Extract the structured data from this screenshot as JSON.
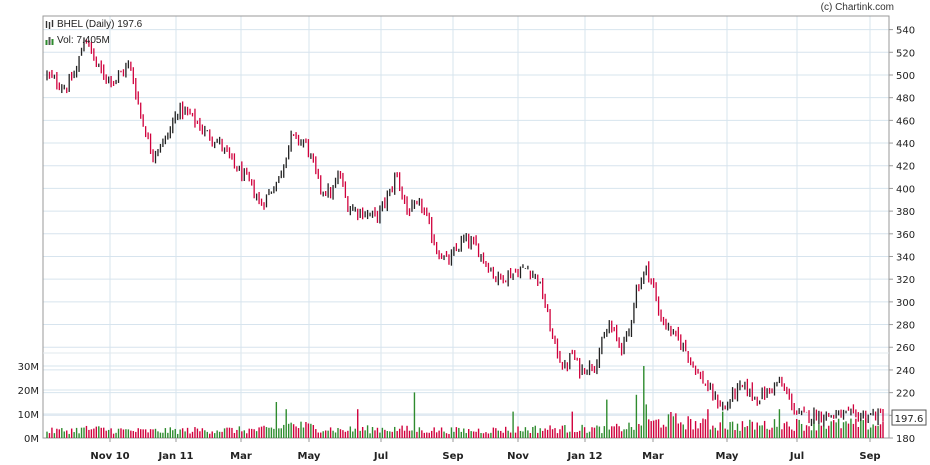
{
  "credit": "(c) Chartink.com",
  "legend": {
    "price_label": "BHEL (Daily) 197.6",
    "volume_label": "Vol: 7.405M"
  },
  "chart_data": {
    "type": "line",
    "title": "BHEL (Daily) 197.6",
    "last_price": 197.6,
    "last_price_label": "197.6",
    "price_axis": {
      "min": 180,
      "max": 552,
      "ticks": [
        180,
        200,
        220,
        240,
        260,
        280,
        300,
        320,
        340,
        360,
        380,
        400,
        420,
        440,
        460,
        480,
        500,
        520,
        540
      ]
    },
    "volume_axis": {
      "max_millions": 30,
      "ticks": [
        "0M",
        "10M",
        "20M",
        "30M"
      ],
      "tick_values": [
        0,
        10,
        20,
        30
      ]
    },
    "x_tick_labels": [
      "Nov 10",
      "Jan 11",
      "Mar",
      "May",
      "Jul",
      "Sep",
      "Nov",
      "Jan 12",
      "Mar",
      "May",
      "Jul",
      "Sep"
    ],
    "x_tick_positions": [
      0.0866,
      0.1868,
      0.2762,
      0.3685,
      0.4584,
      0.5523,
      0.6457,
      0.7348,
      0.8214,
      0.9119,
      1.0,
      1.0925
    ],
    "grid": true,
    "colors": {
      "up": "#2e8b2e",
      "down": "#d0003c",
      "grid": "#d7e4ee",
      "axis": "#999999"
    },
    "price_anchors": {
      "t": [
        0,
        0.01,
        0.025,
        0.04,
        0.05,
        0.065,
        0.075,
        0.09,
        0.11,
        0.125,
        0.14,
        0.16,
        0.175,
        0.19,
        0.21,
        0.23,
        0.25,
        0.27,
        0.285,
        0.295,
        0.31,
        0.325,
        0.345,
        0.365,
        0.38,
        0.39,
        0.4,
        0.415,
        0.44,
        0.46,
        0.465,
        0.48,
        0.5,
        0.52,
        0.535,
        0.555,
        0.57,
        0.585,
        0.6,
        0.62,
        0.64,
        0.655,
        0.665,
        0.675,
        0.69,
        0.7,
        0.71,
        0.73,
        0.75,
        0.765,
        0.775,
        0.785,
        0.8,
        0.81,
        0.815,
        0.83,
        0.85,
        0.865,
        0.89,
        0.905,
        0.915,
        0.93,
        0.945,
        0.96,
        0.975,
        0.99,
        1.0
      ],
      "v": [
        500,
        495,
        488,
        505,
        535,
        510,
        500,
        495,
        510,
        465,
        430,
        445,
        470,
        465,
        450,
        440,
        420,
        405,
        385,
        395,
        410,
        445,
        440,
        400,
        395,
        415,
        385,
        380,
        375,
        400,
        415,
        380,
        385,
        345,
        335,
        355,
        350,
        335,
        320,
        325,
        330,
        320,
        295,
        265,
        240,
        255,
        240,
        245,
        280,
        260,
        270,
        310,
        330,
        310,
        290,
        275,
        260,
        240,
        215,
        205,
        220,
        225,
        215,
        220,
        230,
        215,
        200
      ]
    },
    "volume_anchors": {
      "t": [
        0,
        0.04,
        0.05,
        0.13,
        0.22,
        0.28,
        0.31,
        0.32,
        0.39,
        0.45,
        0.51,
        0.56,
        0.6,
        0.66,
        0.75,
        0.79,
        0.83,
        0.87,
        0.9,
        0.93,
        1.0
      ],
      "v": [
        3,
        3.5,
        4,
        3,
        3.5,
        3.5,
        4,
        6,
        3.5,
        4,
        3.5,
        3.2,
        3.5,
        4,
        4,
        5.5,
        8,
        6,
        5.5,
        5.5,
        6
      ],
      "spikes": [
        {
          "t": 0.305,
          "v": 15
        },
        {
          "t": 0.32,
          "v": 12
        },
        {
          "t": 0.415,
          "v": 12
        },
        {
          "t": 0.49,
          "v": 19
        },
        {
          "t": 0.62,
          "v": 11
        },
        {
          "t": 0.7,
          "v": 11
        },
        {
          "t": 0.745,
          "v": 16
        },
        {
          "t": 0.785,
          "v": 18
        },
        {
          "t": 0.795,
          "v": 30
        },
        {
          "t": 0.8,
          "v": 14
        },
        {
          "t": 0.88,
          "v": 12
        },
        {
          "t": 0.9,
          "v": 11
        },
        {
          "t": 0.975,
          "v": 12
        }
      ]
    }
  }
}
